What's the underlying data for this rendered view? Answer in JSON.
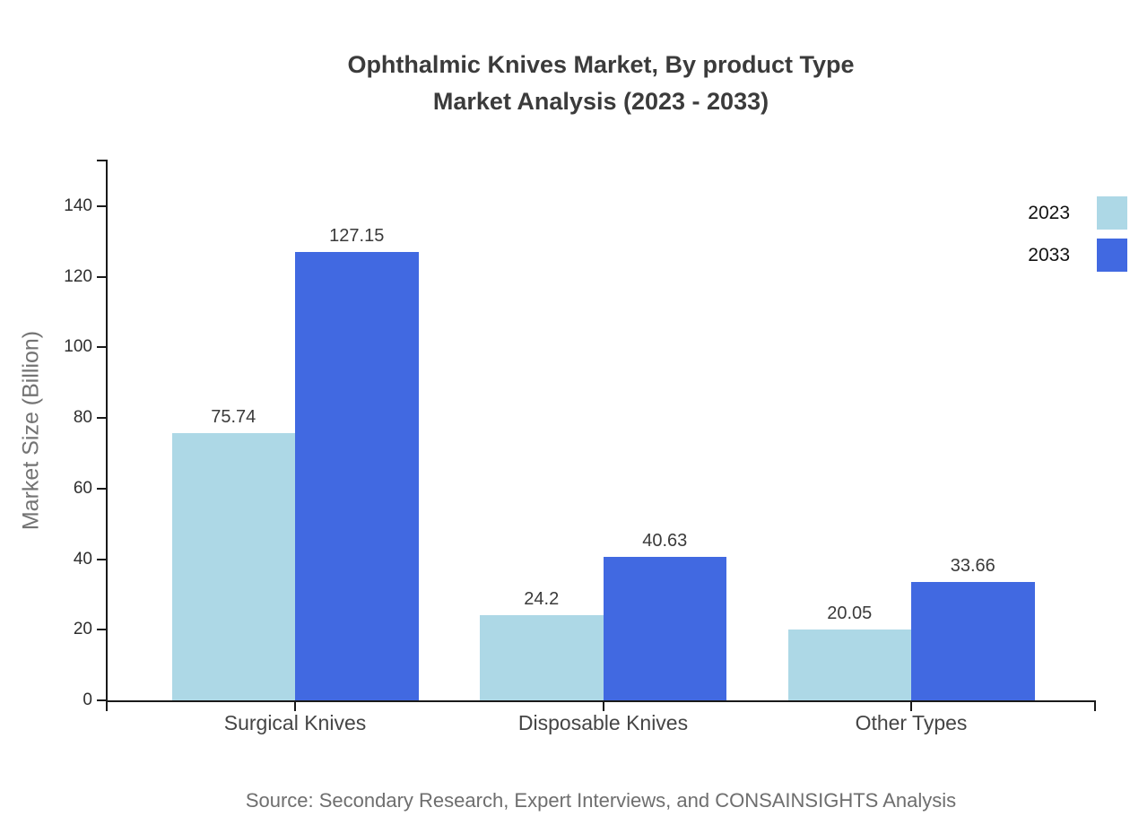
{
  "chart_data": {
    "type": "bar",
    "title": "Ophthalmic Knives Market, By product Type Market Analysis (2023 - 2033)",
    "title_lines": [
      "Ophthalmic Knives Market, By product Type",
      "Market Analysis (2023 - 2033)"
    ],
    "categories": [
      "Surgical Knives",
      "Disposable Knives",
      "Other Types"
    ],
    "series": [
      {
        "name": "2023",
        "color": "#ADD8E6",
        "values": [
          75.74,
          24.2,
          20.05
        ],
        "labels": [
          "75.74",
          "24.2",
          "20.05"
        ]
      },
      {
        "name": "2033",
        "color": "#4169E1",
        "values": [
          127.15,
          40.63,
          33.66
        ],
        "labels": [
          "127.15",
          "40.63",
          "33.66"
        ]
      }
    ],
    "xlabel": "",
    "ylabel": "Market Size (Billion)",
    "yticks": [
      0,
      20,
      40,
      60,
      80,
      100,
      120,
      140
    ],
    "ylim": [
      0,
      153
    ],
    "grid": false,
    "legend_position": "top-right",
    "source": "Source: Secondary Research, Expert Interviews, and CONSAINSIGHTS Analysis"
  }
}
